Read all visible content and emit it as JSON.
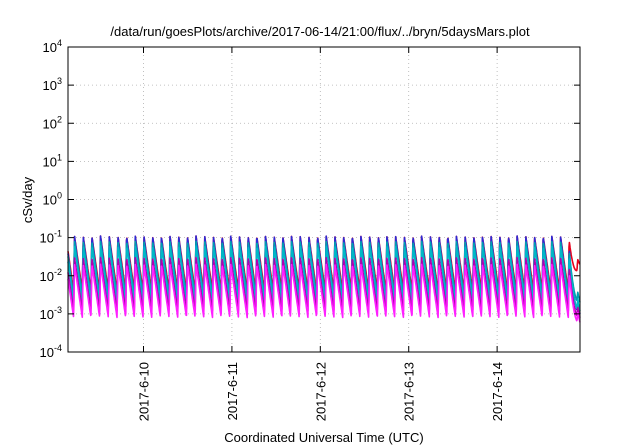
{
  "chart_data": {
    "type": "line",
    "title": "/data/run/goesPlots/archive/2017-06-14/21:00/flux/../bryn/5daysMars.plot",
    "xlabel": "Coordinated Universal Time (UTC)",
    "ylabel": "cSv/day",
    "y_scale": "log",
    "ylim": [
      0.0001,
      10000
    ],
    "xlim": [
      "2017-06-09T03:30",
      "2017-06-14T22:30"
    ],
    "grid": true,
    "legend": "none",
    "y_ticks": [
      {
        "base": "10",
        "exp": "-4"
      },
      {
        "base": "10",
        "exp": "-3"
      },
      {
        "base": "10",
        "exp": "-2"
      },
      {
        "base": "10",
        "exp": "-1"
      },
      {
        "base": "10",
        "exp": "0"
      },
      {
        "base": "10",
        "exp": "1"
      },
      {
        "base": "10",
        "exp": "2"
      },
      {
        "base": "10",
        "exp": "3"
      },
      {
        "base": "10",
        "exp": "4"
      }
    ],
    "x_ticks": [
      {
        "label": "2017-6-10",
        "x": "2017-06-10T00:00"
      },
      {
        "label": "2017-6-11",
        "x": "2017-06-11T00:00"
      },
      {
        "label": "2017-6-12",
        "x": "2017-06-12T00:00"
      },
      {
        "label": "2017-6-13",
        "x": "2017-06-13T00:00"
      },
      {
        "label": "2017-6-14",
        "x": "2017-06-14T00:00"
      }
    ],
    "oscillation": {
      "cycles": 59,
      "shape": "sawtooth (sharp rise, slow decay)",
      "end_drop_start": "2017-06-14T19:00"
    },
    "series": [
      {
        "color": "#e8001c",
        "peak": 0.11,
        "trough": 0.004,
        "end_value": 0.02
      },
      {
        "color": "#2b2bd6",
        "peak": 0.11,
        "trough": 0.0025,
        "end_value": 0.001
      },
      {
        "color": "#00a0b0",
        "peak": 0.08,
        "trough": 0.003,
        "end_value": 0.002
      },
      {
        "color": "#00b8c8",
        "peak": 0.06,
        "trough": 0.002,
        "end_value": 0.0012
      },
      {
        "color": "#b000b0",
        "peak": 0.03,
        "trough": 0.0012,
        "end_value": 0.0008
      },
      {
        "color": "#ff20ff",
        "peak": 0.02,
        "trough": 0.0008,
        "end_value": 0.0006
      }
    ]
  }
}
